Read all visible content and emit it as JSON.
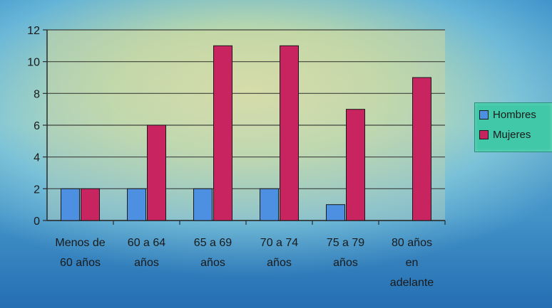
{
  "chart_data": {
    "type": "bar",
    "categories": [
      [
        "Menos de",
        "60 años"
      ],
      [
        "60 a 64",
        "años"
      ],
      [
        "65 a 69",
        "años"
      ],
      [
        "70 a 74",
        "años"
      ],
      [
        "75 a 79",
        "años"
      ],
      [
        "80 años",
        "en",
        "adelante"
      ]
    ],
    "series": [
      {
        "name": "Hombres",
        "color": "#4d8fe0",
        "values": [
          2,
          2,
          2,
          2,
          1,
          0
        ]
      },
      {
        "name": "Mujeres",
        "color": "#c8245f",
        "values": [
          2,
          6,
          11,
          11,
          7,
          9
        ]
      }
    ],
    "ylim": [
      0,
      12
    ],
    "yticks": [
      "0",
      "2",
      "4",
      "6",
      "8",
      "10",
      "12"
    ],
    "grid": true,
    "legend_position": "right"
  }
}
